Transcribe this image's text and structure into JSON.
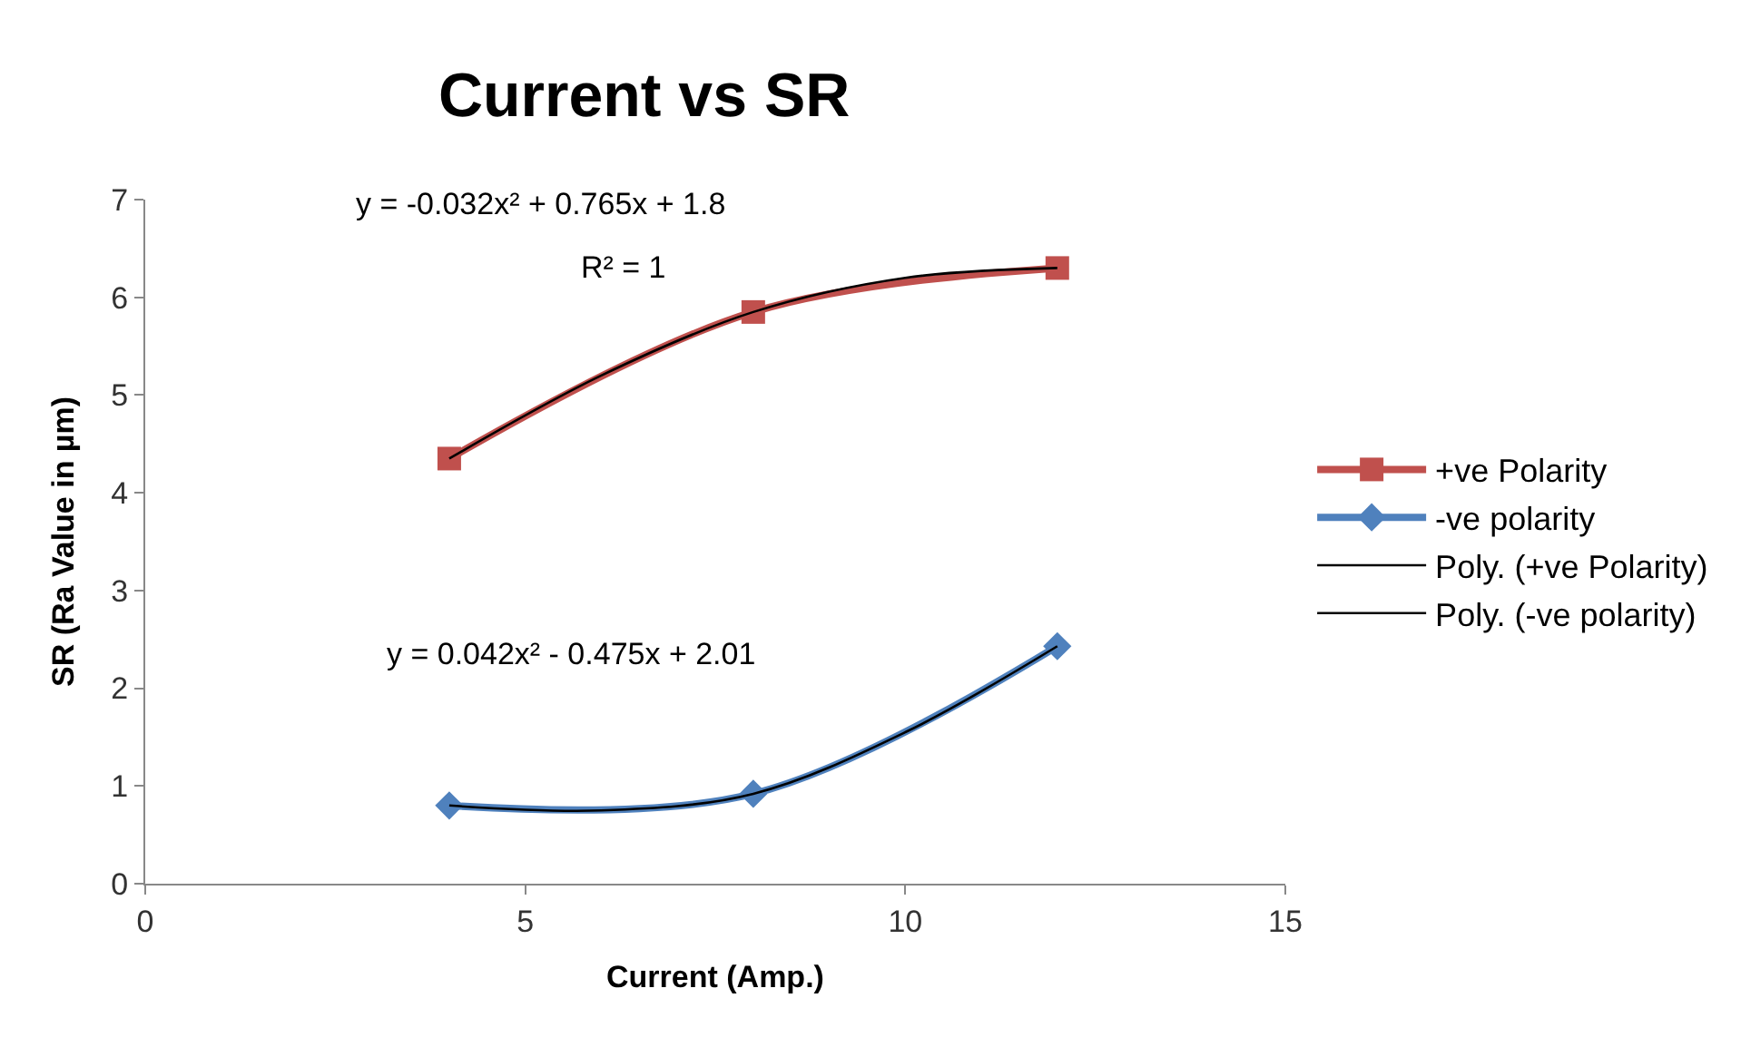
{
  "chart_data": {
    "type": "line",
    "title": "Current vs SR",
    "xlabel": "Current (Amp.)",
    "ylabel": "SR (Ra Value in µm)",
    "xlim": [
      0,
      15
    ],
    "xticks": [
      0,
      5,
      10,
      15
    ],
    "ylim": [
      0,
      7
    ],
    "yticks": [
      0,
      1,
      2,
      3,
      4,
      5,
      6,
      7
    ],
    "legend": "right",
    "series": [
      {
        "name": "+ve Polarity",
        "color": "#c0504d",
        "marker": "square",
        "x": [
          4,
          8,
          12
        ],
        "values": [
          4.35,
          5.85,
          6.3
        ]
      },
      {
        "name": "-ve polarity",
        "color": "#4f81bd",
        "marker": "diamond",
        "x": [
          4,
          8,
          12
        ],
        "values": [
          0.8,
          0.92,
          2.43
        ]
      },
      {
        "name": "Poly. (+ve Polarity)",
        "color": "#000000",
        "marker": "none",
        "x": [
          4,
          6,
          8,
          10,
          12
        ],
        "values": [
          4.35,
          5.2,
          5.85,
          6.2,
          6.3
        ]
      },
      {
        "name": "Poly. (-ve polarity)",
        "color": "#000000",
        "marker": "none",
        "x": [
          4,
          6,
          8,
          10,
          12
        ],
        "values": [
          0.8,
          0.75,
          0.92,
          1.55,
          2.43
        ]
      }
    ],
    "annotations": [
      "y = -0.032x² + 0.765x + 1.8",
      "R² = 1",
      "y = 0.042x² - 0.475x + 2.01"
    ]
  }
}
